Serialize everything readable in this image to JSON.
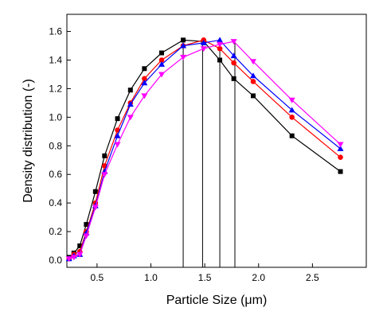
{
  "chart_data": {
    "type": "line",
    "x_label": "Particle Size (μm)",
    "y_label": "Density distribution (-)",
    "xlim": [
      0.22,
      3.0
    ],
    "ylim": [
      -0.05,
      1.72
    ],
    "xticks": [
      0.5,
      {
        "value": 1.0,
        "label": "1.0"
      },
      1.5,
      {
        "value": 2.0,
        "label": "2.0"
      },
      2.5
    ],
    "yticks": [
      {
        "value": 0.0,
        "label": "0.0"
      },
      0.2,
      0.4,
      0.6,
      0.8,
      {
        "value": 1.0,
        "label": "1.0"
      },
      1.2,
      1.4,
      1.6
    ],
    "x": [
      0.24,
      0.285,
      0.34,
      0.4,
      0.485,
      0.57,
      0.69,
      0.81,
      0.94,
      1.1,
      1.3,
      1.49,
      1.64,
      1.77,
      1.95,
      2.31,
      2.76
    ],
    "series": [
      {
        "color": "#000000",
        "marker": "square",
        "values": [
          0.02,
          0.05,
          0.1,
          0.25,
          0.48,
          0.73,
          0.99,
          1.19,
          1.34,
          1.45,
          1.54,
          1.53,
          1.4,
          1.27,
          1.15,
          0.87,
          0.62
        ]
      },
      {
        "color": "#ff0000",
        "marker": "circle",
        "values": [
          0.01,
          0.04,
          0.06,
          0.2,
          0.4,
          0.66,
          0.91,
          1.1,
          1.27,
          1.4,
          1.5,
          1.54,
          1.48,
          1.38,
          1.25,
          1.0,
          0.72
        ]
      },
      {
        "color": "#0000ff",
        "marker": "triangle-up",
        "values": [
          0.01,
          0.03,
          0.04,
          0.19,
          0.38,
          0.62,
          0.87,
          1.09,
          1.24,
          1.37,
          1.5,
          1.52,
          1.54,
          1.43,
          1.29,
          1.05,
          0.78
        ]
      },
      {
        "color": "#ff00ff",
        "marker": "triangle-down",
        "values": [
          0.01,
          0.02,
          0.04,
          0.17,
          0.37,
          0.6,
          0.81,
          1.0,
          1.15,
          1.3,
          1.42,
          1.48,
          1.51,
          1.53,
          1.39,
          1.12,
          0.81
        ]
      }
    ],
    "peak_lines": {
      "color": "#000000",
      "x": [
        1.3,
        1.48,
        1.64,
        1.78
      ],
      "values": [
        1.54,
        1.54,
        1.54,
        1.54
      ]
    }
  }
}
